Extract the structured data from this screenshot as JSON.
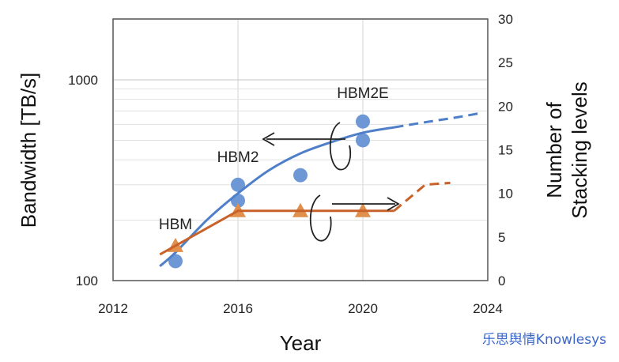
{
  "chart_data": {
    "type": "scatter",
    "xlabel": "Year",
    "ylabel_left": "Bandwidth  [TB/s]",
    "ylabel_right_line1": "Number of",
    "ylabel_right_line2": "Stacking levels",
    "xlim": [
      2012,
      2024
    ],
    "x_ticks": [
      "2012",
      "2016",
      "2020",
      "2024"
    ],
    "x_tick_values": [
      2012,
      2016,
      2020,
      2024
    ],
    "y_left_scale": "log",
    "y_left_lim": [
      100,
      2000
    ],
    "y_left_ticks": [
      "100",
      "1000"
    ],
    "y_left_tick_values": [
      100,
      1000
    ],
    "y_right_lim": [
      0,
      30
    ],
    "y_right_ticks": [
      "0",
      "5",
      "10",
      "15",
      "20",
      "25",
      "30"
    ],
    "y_right_tick_values": [
      0,
      5,
      10,
      15,
      20,
      25,
      30
    ],
    "grid": true,
    "annotations": [
      {
        "text": "HBM",
        "x": 2014,
        "y_bandwidth": 180
      },
      {
        "text": "HBM2",
        "x": 2016,
        "y_bandwidth": 390
      },
      {
        "text": "HBM2E",
        "x": 2020,
        "y_bandwidth": 810
      }
    ],
    "series": [
      {
        "axis": "left",
        "marker": "circle",
        "points": [
          [
            2014,
            125
          ],
          [
            2016,
            250
          ],
          [
            2016,
            300
          ],
          [
            2018,
            335
          ],
          [
            2020,
            500
          ],
          [
            2020,
            620
          ]
        ]
      },
      {
        "axis": "left",
        "line": "fit",
        "solid": [
          [
            2013.5,
            118
          ],
          [
            2014,
            138
          ],
          [
            2015,
            200
          ],
          [
            2016,
            272
          ],
          [
            2017,
            355
          ],
          [
            2018,
            430
          ],
          [
            2019,
            490
          ],
          [
            2020,
            545
          ],
          [
            2021,
            580
          ]
        ],
        "dashed": [
          [
            2021,
            580
          ],
          [
            2022,
            615
          ],
          [
            2023,
            650
          ],
          [
            2023.7,
            680
          ]
        ]
      },
      {
        "axis": "right",
        "marker": "triangle",
        "points": [
          [
            2014,
            4
          ],
          [
            2016,
            8
          ],
          [
            2018,
            8
          ],
          [
            2020,
            8
          ]
        ]
      },
      {
        "axis": "right",
        "line": "trend",
        "solid": [
          [
            2013.5,
            3
          ],
          [
            2016,
            8
          ],
          [
            2021,
            8
          ]
        ],
        "dashed": [
          [
            2021,
            8
          ],
          [
            2022,
            11
          ],
          [
            2022.8,
            11.2
          ]
        ]
      }
    ],
    "colors": {
      "blue": "#4f7fc9",
      "orange": "#c8622a",
      "marker_blue": "#6e97d6",
      "marker_orange": "#e08f4c"
    }
  },
  "watermark": "乐思舆情Knowlesys"
}
